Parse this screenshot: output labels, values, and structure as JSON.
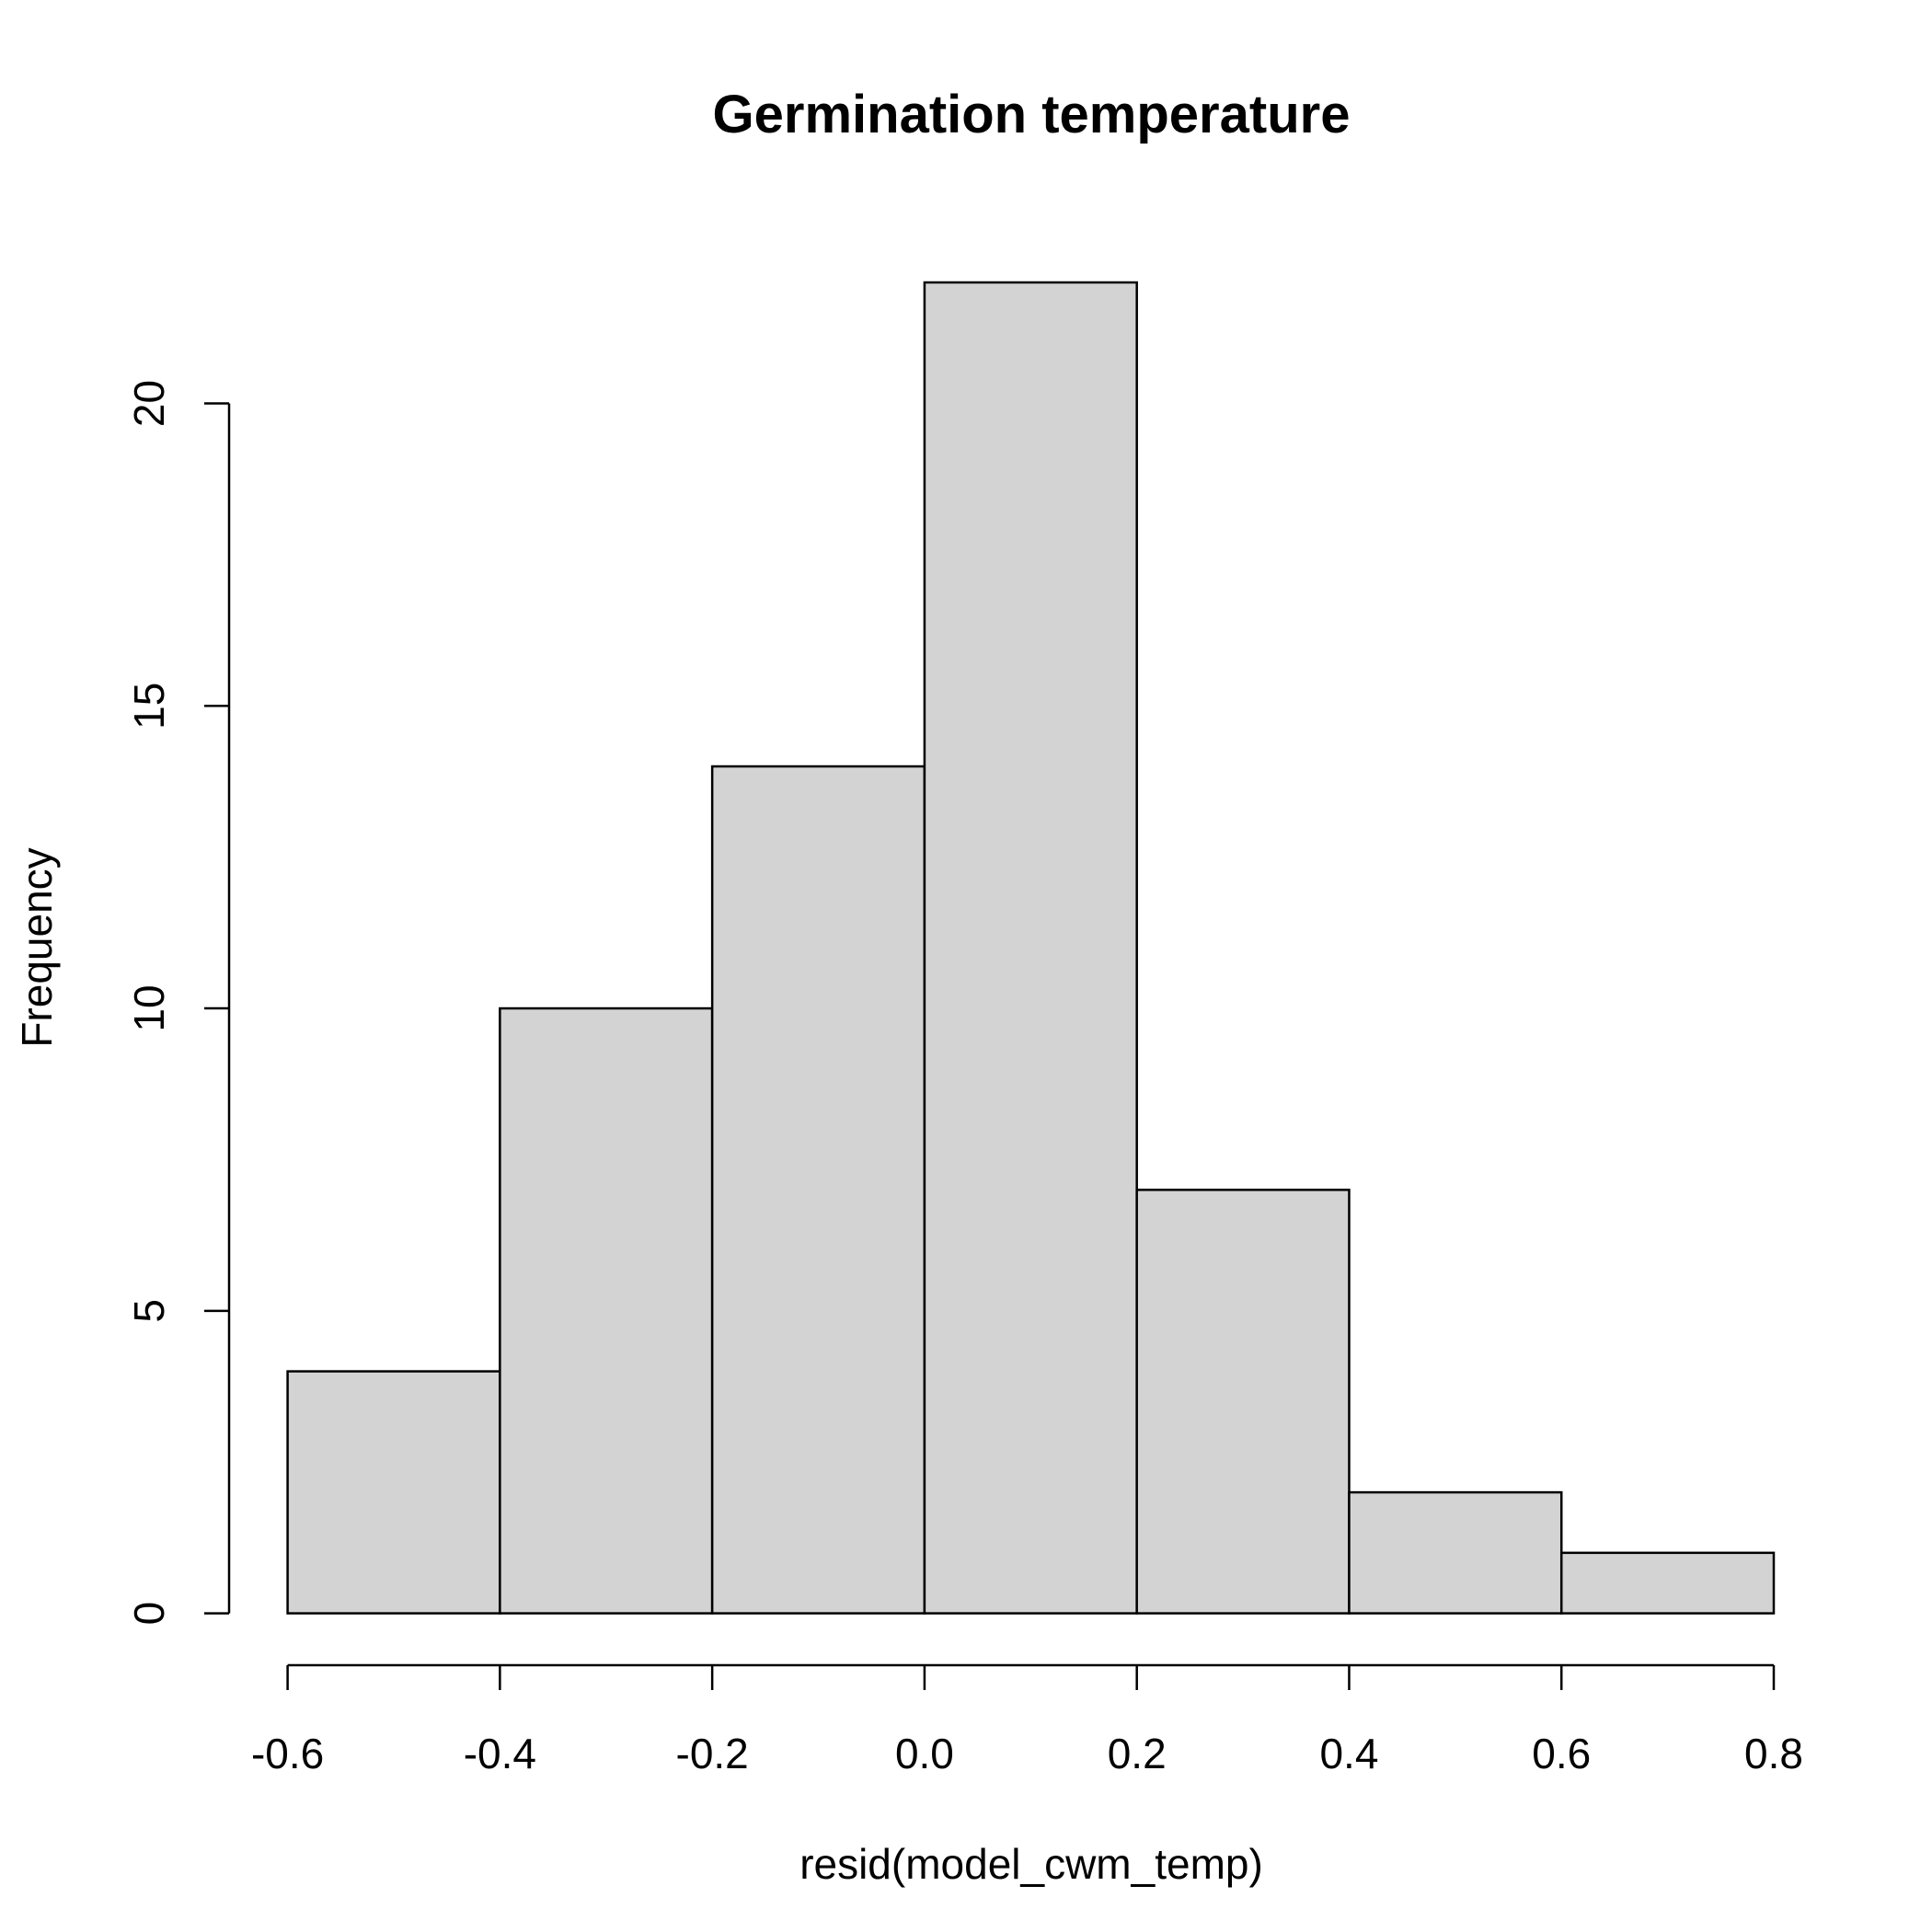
{
  "chart_data": {
    "type": "histogram",
    "title": "Germination temperature",
    "x_label": "resid(model_cwm_temp)",
    "y_label": "Frequency",
    "bins": [
      -0.6,
      -0.4,
      -0.2,
      0,
      0.2,
      0.4,
      0.6,
      0.8
    ],
    "values": [
      4,
      10,
      14,
      22,
      7,
      2,
      1
    ],
    "color": "#d3d3d3",
    "xlim": [
      -0.6,
      0.8
    ],
    "xticks": [
      -0.6,
      -0.4,
      -0.2,
      {
        "value": 0,
        "label": "0.0"
      },
      0.2,
      0.4,
      0.6,
      0.8
    ],
    "ylim": [
      0,
      22
    ],
    "yticks": [
      0,
      5,
      10,
      15,
      20
    ],
    "grid": false
  }
}
